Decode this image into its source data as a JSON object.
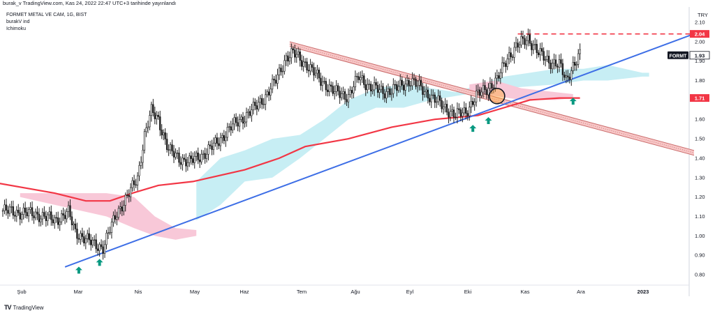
{
  "header": "burak_v TradingView.com, Kas 24, 2022 22:47 UTC+3 tarihinde yayınlandı",
  "legend": {
    "symbol_line": "FORMET METAL VE CAM, 1G, BIST",
    "indicator1": "burakV ind",
    "indicator2": "Ichimoku"
  },
  "footer": {
    "logo": "TV",
    "brand": "TradingView"
  },
  "colors": {
    "ma_line": "#f23645",
    "trend_line": "#3d6ee6",
    "channel_fill": "#f7c6c6",
    "channel_edge": "#c96a6a",
    "cloud_bull": "#c7eef4",
    "cloud_bear": "#f8c8d8",
    "candle": "#1f1f1f",
    "arrow": "#089981",
    "level_line": "#f23645",
    "ticker_badge": "#131722",
    "price_badge": "#f23645"
  },
  "chart_data": {
    "type": "candlestick",
    "currency": "TRY",
    "ylim": [
      0.75,
      2.15
    ],
    "y_ticks": [
      0.8,
      0.9,
      1.0,
      1.1,
      1.2,
      1.3,
      1.4,
      1.5,
      1.6,
      1.7,
      1.8,
      1.9,
      2.0,
      2.1
    ],
    "x_tick_labels": [
      "Şub",
      "Mar",
      "Nis",
      "May",
      "Haz",
      "Tem",
      "Ağu",
      "Eyl",
      "Eki",
      "Kas",
      "Ara",
      "2023"
    ],
    "price_badges": [
      {
        "label": "2.04",
        "value": 2.04,
        "kind": "level"
      },
      {
        "label": "1.93",
        "value": 1.93,
        "kind": "last",
        "ticker": "FORMT"
      },
      {
        "label": "1.71",
        "value": 1.71,
        "kind": "ma"
      }
    ],
    "close_path": [
      [
        0,
        1.13
      ],
      [
        10,
        1.12
      ],
      [
        20,
        1.11
      ],
      [
        30,
        1.08
      ],
      [
        38,
        1.12
      ],
      [
        42,
        1.02
      ],
      [
        52,
        0.96
      ],
      [
        58,
        0.94
      ],
      [
        62,
        1.03
      ],
      [
        66,
        1.12
      ],
      [
        72,
        1.2
      ],
      [
        78,
        1.3
      ],
      [
        82,
        1.52
      ],
      [
        86,
        1.64
      ],
      [
        90,
        1.6
      ],
      [
        96,
        1.44
      ],
      [
        102,
        1.4
      ],
      [
        108,
        1.38
      ],
      [
        116,
        1.42
      ],
      [
        124,
        1.48
      ],
      [
        132,
        1.56
      ],
      [
        138,
        1.6
      ],
      [
        146,
        1.66
      ],
      [
        152,
        1.72
      ],
      [
        158,
        1.8
      ],
      [
        164,
        1.92
      ],
      [
        168,
        1.94
      ],
      [
        176,
        1.88
      ],
      [
        184,
        1.8
      ],
      [
        192,
        1.74
      ],
      [
        200,
        1.72
      ],
      [
        206,
        1.82
      ],
      [
        212,
        1.77
      ],
      [
        220,
        1.74
      ],
      [
        228,
        1.76
      ],
      [
        236,
        1.8
      ],
      [
        242,
        1.76
      ],
      [
        250,
        1.7
      ],
      [
        256,
        1.66
      ],
      [
        262,
        1.62
      ],
      [
        268,
        1.64
      ],
      [
        274,
        1.72
      ],
      [
        280,
        1.76
      ],
      [
        286,
        1.8
      ],
      [
        292,
        1.92
      ],
      [
        298,
        1.98
      ],
      [
        304,
        2.02
      ],
      [
        310,
        1.94
      ],
      [
        316,
        1.9
      ],
      [
        322,
        1.88
      ],
      [
        326,
        1.8
      ],
      [
        330,
        1.88
      ],
      [
        334,
        1.93
      ]
    ],
    "ma_line": [
      [
        -2,
        1.27
      ],
      [
        30,
        1.22
      ],
      [
        48,
        1.18
      ],
      [
        62,
        1.18
      ],
      [
        75,
        1.22
      ],
      [
        90,
        1.26
      ],
      [
        110,
        1.28
      ],
      [
        140,
        1.34
      ],
      [
        160,
        1.4
      ],
      [
        175,
        1.46
      ],
      [
        200,
        1.5
      ],
      [
        225,
        1.56
      ],
      [
        250,
        1.6
      ],
      [
        275,
        1.62
      ],
      [
        290,
        1.66
      ],
      [
        305,
        1.7
      ],
      [
        322,
        1.71
      ],
      [
        334,
        1.71
      ]
    ],
    "trend_line": [
      [
        36,
        0.84
      ],
      [
        400,
        2.04
      ]
    ],
    "channel_upper": [
      [
        166,
        2.0
      ],
      [
        400,
        1.44
      ]
    ],
    "channel_lower": [
      [
        166,
        1.975
      ],
      [
        400,
        1.415
      ]
    ],
    "resistance_line": {
      "value": 2.04,
      "from": 298,
      "to": 400
    },
    "cloud_bull": {
      "top": [
        [
          112,
          1.28
        ],
        [
          126,
          1.4
        ],
        [
          140,
          1.44
        ],
        [
          156,
          1.5
        ],
        [
          172,
          1.52
        ],
        [
          186,
          1.6
        ],
        [
          200,
          1.7
        ],
        [
          216,
          1.76
        ],
        [
          232,
          1.78
        ],
        [
          248,
          1.76
        ],
        [
          262,
          1.74
        ],
        [
          290,
          1.82
        ],
        [
          320,
          1.86
        ],
        [
          336,
          1.86
        ],
        [
          350,
          1.88
        ],
        [
          370,
          1.84
        ],
        [
          374,
          1.84
        ]
      ],
      "bottom": [
        [
          112,
          1.08
        ],
        [
          126,
          1.16
        ],
        [
          140,
          1.28
        ],
        [
          156,
          1.3
        ],
        [
          172,
          1.4
        ],
        [
          186,
          1.5
        ],
        [
          200,
          1.6
        ],
        [
          216,
          1.66
        ],
        [
          232,
          1.66
        ],
        [
          248,
          1.7
        ],
        [
          262,
          1.72
        ],
        [
          290,
          1.76
        ],
        [
          320,
          1.78
        ],
        [
          336,
          1.8
        ],
        [
          350,
          1.8
        ],
        [
          370,
          1.82
        ],
        [
          374,
          1.82
        ]
      ]
    },
    "cloud_bear": {
      "top": [
        [
          10,
          1.22
        ],
        [
          40,
          1.22
        ],
        [
          60,
          1.22
        ],
        [
          76,
          1.2
        ],
        [
          88,
          1.1
        ],
        [
          100,
          1.04
        ],
        [
          112,
          1.03
        ]
      ],
      "bottom": [
        [
          10,
          1.2
        ],
        [
          40,
          1.14
        ],
        [
          60,
          1.1
        ],
        [
          76,
          1.04
        ],
        [
          88,
          1.0
        ],
        [
          100,
          0.98
        ],
        [
          112,
          1.0
        ]
      ]
    },
    "cloud_bear2": {
      "top": [
        [
          270,
          1.78
        ],
        [
          285,
          1.8
        ],
        [
          300,
          1.76
        ],
        [
          320,
          1.74
        ],
        [
          330,
          1.73
        ]
      ],
      "bottom": [
        [
          270,
          1.74
        ],
        [
          285,
          1.72
        ],
        [
          300,
          1.7
        ],
        [
          320,
          1.7
        ],
        [
          330,
          1.71
        ]
      ]
    },
    "arrows_up": [
      {
        "x": 44,
        "y": 0.82
      },
      {
        "x": 56,
        "y": 0.86
      },
      {
        "x": 272,
        "y": 1.55
      },
      {
        "x": 281,
        "y": 1.59
      },
      {
        "x": 330,
        "y": 1.69
      }
    ],
    "highlight_circle": {
      "x": 286,
      "y": 1.72
    }
  }
}
